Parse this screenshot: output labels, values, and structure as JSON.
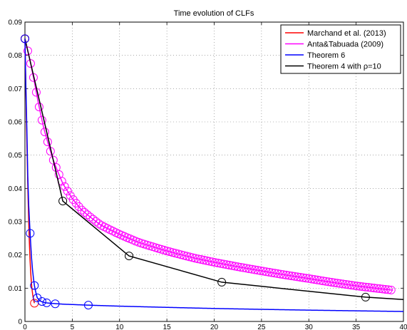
{
  "chart_data": {
    "type": "line",
    "title": "Time evolution of CLFs",
    "xlabel": "",
    "ylabel": "",
    "xlim": [
      0,
      40
    ],
    "ylim": [
      0,
      0.09
    ],
    "xticks": [
      "0",
      "5",
      "10",
      "15",
      "20",
      "25",
      "30",
      "35",
      "40"
    ],
    "yticks": [
      "0",
      "0.01",
      "0.02",
      "0.03",
      "0.04",
      "0.05",
      "0.06",
      "0.07",
      "0.08",
      "0.09"
    ],
    "grid": true,
    "legend_position": "top-right",
    "series": [
      {
        "name": "Marchand et al. (2013)",
        "color": "#ff0000",
        "x": [
          0,
          0.1,
          0.25,
          0.4,
          0.55,
          0.7,
          0.85,
          1.0
        ],
        "y": [
          0.085,
          0.07,
          0.048,
          0.03,
          0.018,
          0.011,
          0.0075,
          0.0055
        ],
        "markers": [
          [
            0.0,
            0.085
          ],
          [
            1.0,
            0.0055
          ]
        ]
      },
      {
        "name": "Anta&Tabuada (2009)",
        "color": "#ff00ff",
        "x": [
          0,
          0.5,
          1,
          1.5,
          2,
          3,
          4,
          5,
          6,
          8,
          10,
          12,
          15,
          18,
          20,
          25,
          30,
          35,
          38.9
        ],
        "y": [
          0.085,
          0.079,
          0.072,
          0.0645,
          0.058,
          0.0485,
          0.0415,
          0.037,
          0.0335,
          0.029,
          0.0262,
          0.0238,
          0.0212,
          0.019,
          0.0178,
          0.0152,
          0.0129,
          0.0107,
          0.0094
        ],
        "markers": "every 0.3 from 0 to 38.9"
      },
      {
        "name": "Theorem 6",
        "color": "#0000ff",
        "x": [
          0,
          0.2,
          0.35,
          0.55,
          0.75,
          1.0,
          1.3,
          1.7,
          2.2,
          3,
          4,
          6.7,
          10,
          20,
          30,
          40
        ],
        "y": [
          0.085,
          0.058,
          0.038,
          0.0265,
          0.017,
          0.0108,
          0.0071,
          0.006,
          0.0056,
          0.0054,
          0.0052,
          0.0049,
          0.0046,
          0.0039,
          0.0034,
          0.003
        ],
        "markers": [
          [
            0.0,
            0.085
          ],
          [
            0.55,
            0.0265
          ],
          [
            1.0,
            0.0108
          ],
          [
            1.3,
            0.0071
          ],
          [
            1.8,
            0.006
          ],
          [
            2.3,
            0.0056
          ],
          [
            3.2,
            0.0053
          ],
          [
            6.7,
            0.0049
          ]
        ]
      },
      {
        "name": "Theorem 4 with ρ=10",
        "color": "#000000",
        "x": [
          0,
          4,
          11,
          20.8,
          36,
          40
        ],
        "y": [
          0.085,
          0.0362,
          0.0197,
          0.0118,
          0.0073,
          0.0066
        ],
        "markers": [
          [
            0,
            0.085
          ],
          [
            4,
            0.0362
          ],
          [
            11,
            0.0197
          ],
          [
            20.8,
            0.0118
          ],
          [
            36,
            0.0073
          ]
        ]
      }
    ]
  }
}
